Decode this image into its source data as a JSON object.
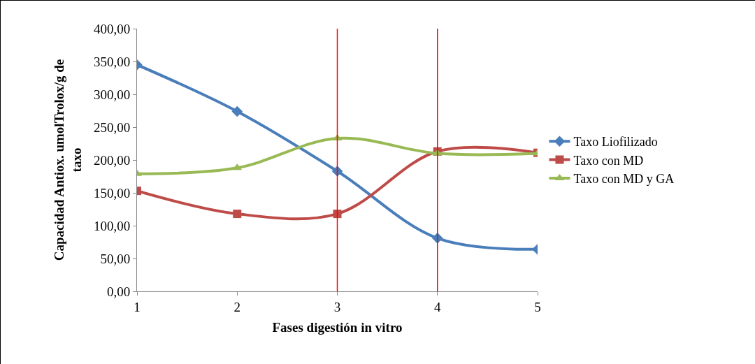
{
  "chart_data": {
    "type": "line",
    "x": [
      1,
      2,
      3,
      4,
      5
    ],
    "xlabel": "Fases digestión in vitro",
    "ylabel": "Capacidad Antiox. umolTrolox/g de taxo",
    "xlim": [
      1,
      5
    ],
    "xticks": [
      1,
      2,
      3,
      4,
      5
    ],
    "ylim": [
      0,
      400
    ],
    "yticks": [
      {
        "value": 0,
        "label": "0,00"
      },
      {
        "value": 50,
        "label": "50,00"
      },
      {
        "value": 100,
        "label": "100,00"
      },
      {
        "value": 150,
        "label": "150,00"
      },
      {
        "value": 200,
        "label": "200,00"
      },
      {
        "value": 250,
        "label": "250,00"
      },
      {
        "value": 300,
        "label": "300,00"
      },
      {
        "value": 350,
        "label": "350,00"
      },
      {
        "value": 400,
        "label": "400,00"
      }
    ],
    "grid": false,
    "legend": "right",
    "series": [
      {
        "name": "Taxo Liofilizado",
        "color": "#4a7ebb",
        "marker": "diamond",
        "values": [
          345,
          274,
          183,
          81,
          64
        ]
      },
      {
        "name": "Taxo con MD",
        "color": "#be4b48",
        "marker": "square",
        "values": [
          153,
          118,
          118,
          213,
          211
        ]
      },
      {
        "name": "Taxo con MD y GA",
        "color": "#98b954",
        "marker": "triangle",
        "values": [
          179,
          188,
          233,
          210,
          210
        ]
      }
    ],
    "ref_lines": [
      {
        "axis": "x",
        "value": 3,
        "color": "#ff0000"
      },
      {
        "axis": "x",
        "value": 4,
        "color": "#ff0000"
      }
    ]
  }
}
